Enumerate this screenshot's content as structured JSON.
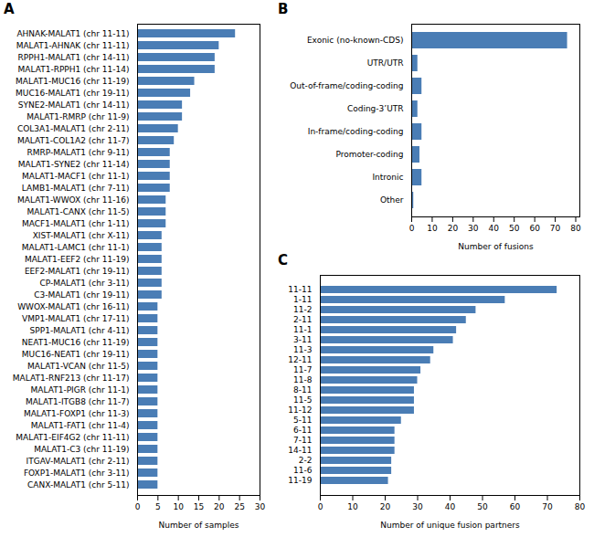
{
  "chart_data": [
    {
      "type": "bar",
      "title": "A",
      "orientation": "horizontal",
      "categories": [
        "AHNAK-MALAT1 (chr 11-11)",
        "MALAT1-AHNAK (chr 11-11)",
        "RPPH1-MALAT1 (chr 14-11)",
        "MALAT1-RPPH1 (chr 11-14)",
        "MALAT1-MUC16 (chr 11-19)",
        "MUC16-MALAT1 (chr 19-11)",
        "SYNE2-MALAT1 (chr 14-11)",
        "MALAT1-RMRP (chr 11-9)",
        "COL3A1-MALAT1 (chr 2-11)",
        "MALAT1-COL1A2 (chr 11-7)",
        "RMRP-MALAT1 (chr 9-11)",
        "MALAT1-SYNE2 (chr 11-14)",
        "MALAT1-MACF1 (chr 11-1)",
        "LAMB1-MALAT1 (chr 7-11)",
        "MALAT1-WWOX (chr 11-16)",
        "MALAT1-CANX (chr 11-5)",
        "MACF1-MALAT1 (chr 1-11)",
        "XIST-MALAT1 (chr X-11)",
        "MALAT1-LAMC1 (chr 11-1)",
        "MALAT1-EEF2 (chr 11-19)",
        "EEF2-MALAT1 (chr 19-11)",
        "CP-MALAT1 (chr 3-11)",
        "C3-MALAT1 (chr 19-11)",
        "WWOX-MALAT1 (chr 16-11)",
        "VMP1-MALAT1 (chr 17-11)",
        "SPP1-MALAT1 (chr 4-11)",
        "NEAT1-MUC16 (chr 11-19)",
        "MUC16-NEAT1 (chr 19-11)",
        "MALAT1-VCAN (chr 11-5)",
        "MALAT1-RNF213 (chr 11-17)",
        "MALAT1-PIGR (chr 11-1)",
        "MALAT1-ITGB8 (chr 11-7)",
        "MALAT1-FOXP1 (chr 11-3)",
        "MALAT1-FAT1 (chr 11-4)",
        "MALAT1-EIF4G2 (chr 11-11)",
        "MALAT1-C3 (chr 11-19)",
        "ITGAV-MALAT1 (chr 2-11)",
        "FOXP1-MALAT1 (chr 3-11)",
        "CANX-MALAT1 (chr 5-11)"
      ],
      "values": [
        24,
        20,
        19,
        19,
        14,
        13,
        11,
        11,
        10,
        9,
        8,
        8,
        8,
        8,
        7,
        7,
        7,
        6,
        6,
        6,
        6,
        6,
        6,
        5,
        5,
        5,
        5,
        5,
        5,
        5,
        5,
        5,
        5,
        5,
        5,
        5,
        5,
        5,
        5
      ],
      "color": "#4A7DB5",
      "xlabel": "Number of samples",
      "xlim": [
        0,
        30
      ],
      "xticks": [
        0,
        5,
        10,
        15,
        20,
        25,
        30
      ]
    },
    {
      "type": "bar",
      "title": "B",
      "orientation": "horizontal",
      "categories": [
        "Exonic (no-known-CDS)",
        "UTR/UTR",
        "Out-of-frame/coding-coding",
        "Coding-3’UTR",
        "In-frame/coding-coding",
        "Promoter-coding",
        "Intronic",
        "Other"
      ],
      "values": [
        76,
        3,
        5,
        3,
        5,
        4,
        5,
        1
      ],
      "color": "#4A7DB5",
      "xlabel": "Number of fusions",
      "xlim": [
        0,
        82
      ],
      "xticks": [
        0,
        10,
        20,
        30,
        40,
        50,
        60,
        70,
        80
      ]
    },
    {
      "type": "bar",
      "title": "C",
      "orientation": "horizontal",
      "categories": [
        "11-11",
        "1-11",
        "11-2",
        "2-11",
        "11-1",
        "3-11",
        "11-3",
        "12-11",
        "11-7",
        "11-8",
        "8-11",
        "11-5",
        "11-12",
        "5-11",
        "6-11",
        "7-11",
        "14-11",
        "2-2",
        "11-6",
        "11-19"
      ],
      "values": [
        73,
        57,
        48,
        45,
        42,
        41,
        35,
        34,
        31,
        30,
        29,
        29,
        29,
        25,
        23,
        23,
        23,
        22,
        22,
        21
      ],
      "color": "#4A7DB5",
      "xlabel": "Number of unique fusion partners",
      "xlim": [
        0,
        80
      ],
      "xticks": [
        0,
        10,
        20,
        30,
        40,
        50,
        60,
        70,
        80
      ]
    }
  ]
}
